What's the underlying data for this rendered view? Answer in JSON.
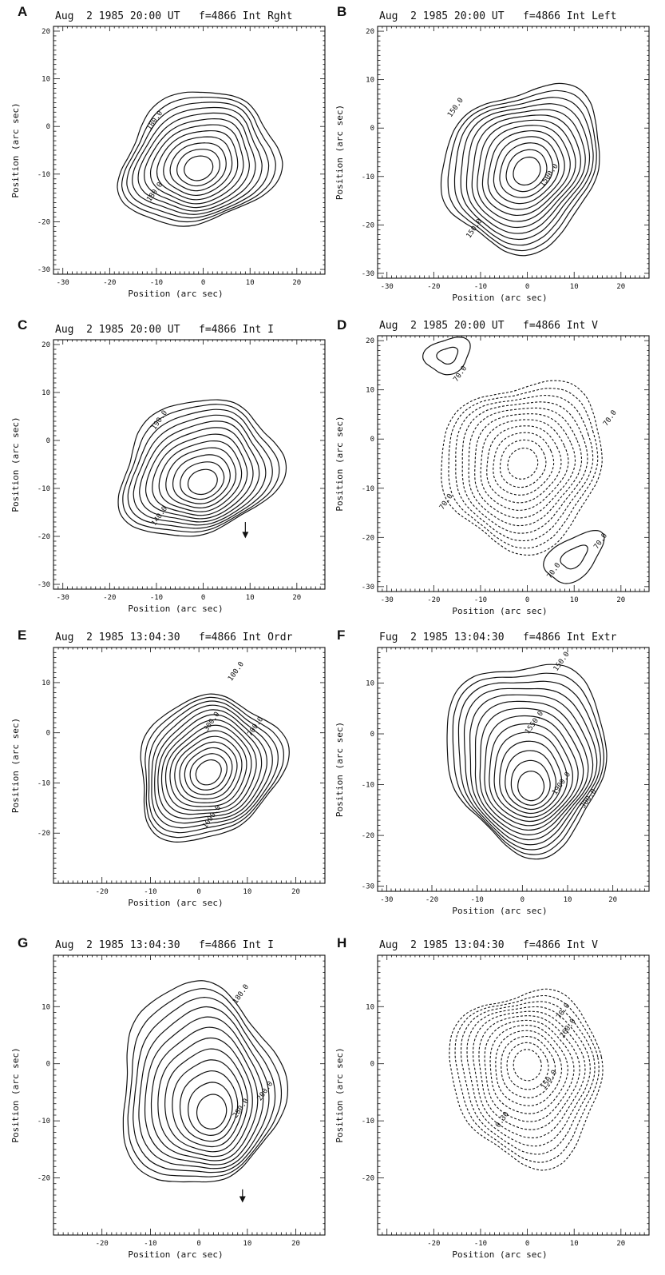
{
  "figure": {
    "x_axis_label": "Position (arc sec)",
    "y_axis_label": "Position (arc sec)"
  },
  "chart_data": [
    {
      "type": "contour",
      "letter": "A",
      "title": "Aug  2 1985 20:00 UT   f=4866 Int Rght",
      "xlabel": "Position (arc sec)",
      "ylabel": "Position (arc sec)",
      "xlim": [
        -32,
        26
      ],
      "ylim": [
        -31,
        21
      ],
      "xticks": [
        -30,
        -20,
        -10,
        0,
        10,
        20
      ],
      "yticks": [
        20,
        10,
        0,
        -10,
        -20,
        -30
      ],
      "style": "solid",
      "source": {
        "cx": -1,
        "cy": -7,
        "rx": 16,
        "ry": 12.5,
        "rot": 0.5,
        "levels": 12
      },
      "peak": {
        "x": -1,
        "y": -9
      },
      "contour_labels": [
        {
          "text": "180.0",
          "x": -10,
          "y": 1
        },
        {
          "text": "180.0",
          "x": -10,
          "y": -14
        }
      ],
      "arrow": null
    },
    {
      "type": "contour",
      "letter": "B",
      "title": "Aug  2 1985 20:00 UT   f=4866 Int Left",
      "xlabel": "Position (arc sec)",
      "ylabel": "Position (arc sec)",
      "xlim": [
        -32,
        26
      ],
      "ylim": [
        -31,
        21
      ],
      "xticks": [
        -30,
        -20,
        -10,
        0,
        10,
        20
      ],
      "yticks": [
        20,
        10,
        0,
        -10,
        -20,
        -30
      ],
      "style": "solid",
      "source": {
        "cx": -1,
        "cy": -8,
        "rx": 17,
        "ry": 14.5,
        "rot": 0.55,
        "levels": 13
      },
      "peak": {
        "x": 0,
        "y": -9
      },
      "contour_labels": [
        {
          "text": "150.0",
          "x": -15,
          "y": 4
        },
        {
          "text": "1500.0",
          "x": 5,
          "y": -10
        },
        {
          "text": "150.0",
          "x": -11,
          "y": -21
        }
      ],
      "arrow": null
    },
    {
      "type": "contour",
      "letter": "C",
      "title": "Aug  2 1985 20:00 UT   f=4866 Int I",
      "xlabel": "Position (arc sec)",
      "ylabel": "Position (arc sec)",
      "xlim": [
        -32,
        26
      ],
      "ylim": [
        -31,
        21
      ],
      "xticks": [
        -30,
        -20,
        -10,
        0,
        10,
        20
      ],
      "yticks": [
        20,
        10,
        0,
        -10,
        -20,
        -30
      ],
      "style": "solid",
      "source": {
        "cx": -1,
        "cy": -6,
        "rx": 16,
        "ry": 13,
        "rot": 0.5,
        "levels": 12
      },
      "peak": {
        "x": 0,
        "y": -9
      },
      "contour_labels": [
        {
          "text": "190.0",
          "x": -9,
          "y": 4
        },
        {
          "text": "140.0",
          "x": -9,
          "y": -16
        }
      ],
      "arrow": {
        "x": 9,
        "y": -17,
        "dy": -3
      }
    },
    {
      "type": "contour",
      "letter": "D",
      "title": "Aug  2 1985 20:00 UT   f=4866 Int V",
      "xlabel": "Position (arc sec)",
      "ylabel": "Position (arc sec)",
      "xlim": [
        -32,
        26
      ],
      "ylim": [
        -31,
        21
      ],
      "xticks": [
        -30,
        -20,
        -10,
        0,
        10,
        20
      ],
      "yticks": [
        20,
        10,
        0,
        -10,
        -20,
        -30
      ],
      "style": "dashed",
      "source": {
        "cx": -1,
        "cy": -5,
        "rx": 17,
        "ry": 15,
        "rot": 0.4,
        "levels": 11
      },
      "peak": null,
      "extras": [
        {
          "cx": -17,
          "cy": 17,
          "rx": 5,
          "ry": 3.5,
          "rot": 0.3
        },
        {
          "cx": 10,
          "cy": -24,
          "rx": 7,
          "ry": 4,
          "rot": 0.6
        }
      ],
      "contour_labels": [
        {
          "text": "70.0",
          "x": -14,
          "y": 13
        },
        {
          "text": "70.0",
          "x": 18,
          "y": 4
        },
        {
          "text": "70.0",
          "x": -17,
          "y": -13
        },
        {
          "text": "70.0",
          "x": 16,
          "y": -21
        },
        {
          "text": "70.0",
          "x": 6,
          "y": -27
        }
      ],
      "arrow": null
    },
    {
      "type": "contour",
      "letter": "E",
      "title": "Aug  2 1985 13:04:30   f=4866 Int Ordr",
      "xlabel": "Position (arc sec)",
      "ylabel": "Position (arc sec)",
      "xlim": [
        -30,
        26
      ],
      "ylim": [
        -30,
        17
      ],
      "xticks": [
        -20,
        -10,
        0,
        10,
        20
      ],
      "yticks": [
        10,
        0,
        -10,
        -20
      ],
      "style": "solid",
      "source": {
        "cx": 2,
        "cy": -7,
        "rx": 14,
        "ry": 13,
        "rot": 0.7,
        "levels": 14
      },
      "peak": {
        "x": 2,
        "y": -8
      },
      "contour_labels": [
        {
          "text": "100.0",
          "x": 8,
          "y": 12
        },
        {
          "text": "300.0",
          "x": 3,
          "y": 2
        },
        {
          "text": "700.0",
          "x": 12,
          "y": 1
        },
        {
          "text": "1000.0",
          "x": 3,
          "y": -17
        }
      ],
      "arrow": null
    },
    {
      "type": "contour",
      "letter": "F",
      "title": "Fug  2 1985 13:04:30   f=4866 Int Extr",
      "xlabel": "Position (arc sec)",
      "ylabel": "Position (arc sec)",
      "xlim": [
        -32,
        28
      ],
      "ylim": [
        -31,
        17
      ],
      "xticks": [
        -30,
        -20,
        -10,
        0,
        10,
        20
      ],
      "yticks": [
        10,
        0,
        -10,
        -20,
        -30
      ],
      "style": "solid",
      "source": {
        "cx": 1,
        "cy": -4,
        "rx": 17,
        "ry": 17,
        "rot": 0.2,
        "levels": 14
      },
      "peak": {
        "x": 2,
        "y": -11
      },
      "contour_labels": [
        {
          "text": "150.0",
          "x": 9,
          "y": 14
        },
        {
          "text": "1550.0",
          "x": 3,
          "y": 2
        },
        {
          "text": "1900.0",
          "x": 9,
          "y": -10
        },
        {
          "text": "300.0",
          "x": 15,
          "y": -13
        }
      ],
      "arrow": null
    },
    {
      "type": "contour",
      "letter": "G",
      "title": "Aug  2 1985 13:04:30   f=4866 Int I",
      "xlabel": "Position (arc sec)",
      "ylabel": "Position (arc sec)",
      "xlim": [
        -30,
        26
      ],
      "ylim": [
        -30,
        19
      ],
      "xticks": [
        -20,
        -10,
        0,
        10,
        20
      ],
      "yticks": [
        10,
        0,
        -10,
        -20
      ],
      "style": "solid",
      "source": {
        "cx": 0,
        "cy": -4,
        "rx": 15,
        "ry": 17,
        "rot": 0.35,
        "levels": 12
      },
      "peak": {
        "x": 3,
        "y": -9
      },
      "contour_labels": [
        {
          "text": "180.0",
          "x": 9,
          "y": 12
        },
        {
          "text": "280.0",
          "x": 9,
          "y": -8
        },
        {
          "text": "200.0",
          "x": 14,
          "y": -5
        }
      ],
      "arrow": {
        "x": 9,
        "y": -22,
        "dy": -2
      }
    },
    {
      "type": "contour",
      "letter": "H",
      "title": "Aug  2 1985 13:04:30   f=4866 Int V",
      "xlabel": "Position (arc sec)",
      "ylabel": "Position (arc sec)",
      "xlim": [
        -32,
        26
      ],
      "ylim": [
        -30,
        19
      ],
      "xticks": [
        -20,
        -10,
        0,
        10,
        20
      ],
      "yticks": [
        10,
        0,
        -10,
        -20
      ],
      "style": "dashed",
      "source": {
        "cx": 0,
        "cy": -2,
        "rx": 15,
        "ry": 14,
        "rot": 0.2,
        "levels": 12
      },
      "peak": {
        "x": 0,
        "y": 0
      },
      "contour_labels": [
        {
          "text": "70.0",
          "x": 8,
          "y": 9
        },
        {
          "text": "260.0",
          "x": 9,
          "y": 6
        },
        {
          "text": "150.0",
          "x": 5,
          "y": -3
        },
        {
          "text": "0.30",
          "x": -5,
          "y": -10
        }
      ],
      "arrow": null
    }
  ]
}
